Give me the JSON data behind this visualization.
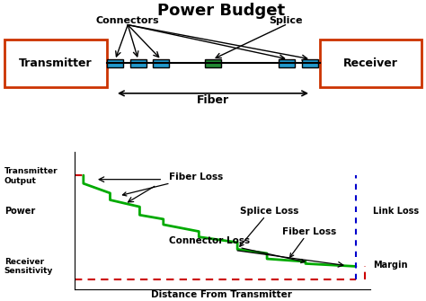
{
  "title": "Power Budget",
  "title_fontsize": 13,
  "title_fontweight": "bold",
  "bg_color": "#ffffff",
  "top_panel": {
    "transmitter_label": "Transmitter",
    "receiver_label": "Receiver",
    "connectors_label": "Connectors",
    "splice_label": "Splice",
    "fiber_label": "Fiber",
    "box_color": "#cc3300",
    "connector_color": "#2299cc",
    "splice_color": "#228833"
  },
  "bottom_panel": {
    "power_line_color": "#00aa00",
    "tx_output_line_color": "#cc0000",
    "rx_sensitivity_line_color": "#cc0000",
    "link_loss_line_color": "#0000cc",
    "margin_line_color": "#cc0000",
    "labels": {
      "transmitter_output": "Transmitter\nOutput",
      "power": "Power",
      "receiver_sensitivity": "Receiver\nSensitivity",
      "distance": "Distance From Transmitter",
      "fiber_loss1": "Fiber Loss",
      "fiber_loss2": "Fiber Loss",
      "splice_loss": "Splice Loss",
      "connector_loss": "Connector Loss",
      "link_loss": "Link Loss",
      "margin": "Margin"
    }
  }
}
